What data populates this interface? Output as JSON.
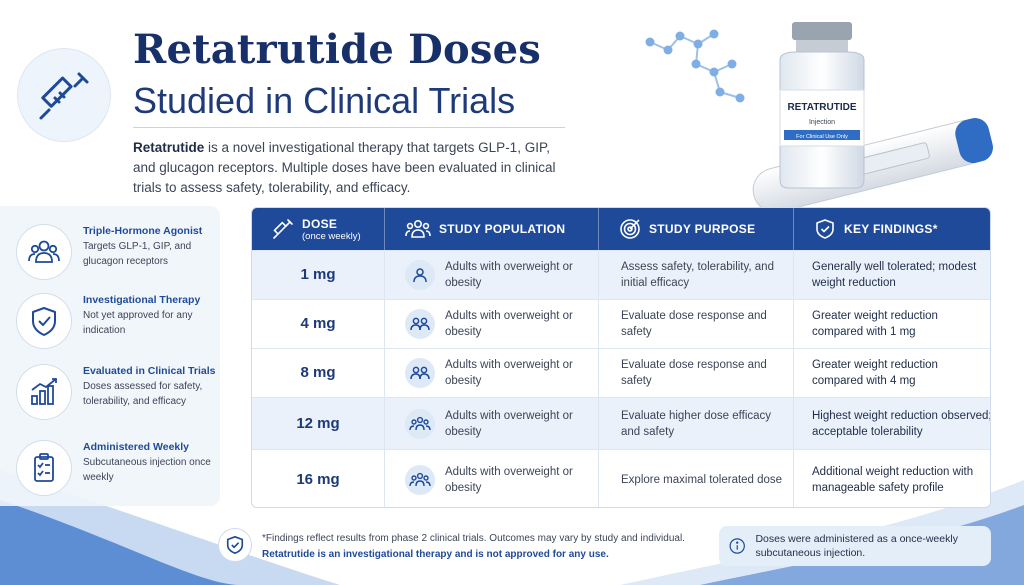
{
  "header": {
    "title_line1": "Retatrutide Doses",
    "title_line2": "Studied in Clinical Trials",
    "intro_bold": "Retatrutide",
    "intro_text": " is a novel investigational therapy that targets GLP-1, GIP, and glucagon receptors. Multiple doses have been evaluated in clinical trials to assess safety, tolerability, and efficacy.",
    "icon": "syringe-icon"
  },
  "product": {
    "vial_name": "RETATRUTIDE",
    "vial_sub": "Injection",
    "vial_band": "For Clinical Use Only"
  },
  "sidebar": {
    "items": [
      {
        "icon": "people-icon",
        "title": "Triple-Hormone Agonist",
        "desc": "Targets GLP-1, GIP, and glucagon receptors"
      },
      {
        "icon": "shield-check-icon",
        "title": "Investigational Therapy",
        "desc": "Not yet approved for any indication"
      },
      {
        "icon": "bar-chart-icon",
        "title": "Evaluated in Clinical Trials",
        "desc": "Doses assessed for safety, tolerability, and efficacy"
      },
      {
        "icon": "clipboard-icon",
        "title": "Administered Weekly",
        "desc": "Subcutaneous injection once weekly"
      }
    ]
  },
  "table": {
    "headers": {
      "dose": "DOSE",
      "dose_sub": "(once weekly)",
      "population": "STUDY POPULATION",
      "purpose": "STUDY PURPOSE",
      "findings": "KEY FINDINGS*"
    },
    "rows": [
      {
        "dose": "1 mg",
        "population": "Adults with overweight or obesity",
        "purpose": "Assess safety, tolerability, and initial efficacy",
        "findings": "Generally well tolerated; modest weight reduction"
      },
      {
        "dose": "4 mg",
        "population": "Adults with overweight or obesity",
        "purpose": "Evaluate dose response and safety",
        "findings": "Greater weight reduction compared with 1 mg"
      },
      {
        "dose": "8 mg",
        "population": "Adults with overweight or obesity",
        "purpose": "Evaluate dose response and safety",
        "findings": "Greater weight reduction compared with 4 mg"
      },
      {
        "dose": "12 mg",
        "population": "Adults with overweight or obesity",
        "purpose": "Evaluate higher dose efficacy and safety",
        "findings": "Highest weight reduction observed; acceptable tolerability"
      },
      {
        "dose": "16 mg",
        "population": "Adults with overweight or obesity",
        "purpose": "Explore maximal tolerated dose",
        "findings": "Additional weight reduction with manageable safety profile"
      }
    ]
  },
  "footer": {
    "note": "*Findings reflect results from phase 2 clinical trials. Outcomes may vary by study and individual.",
    "warning": "Retatrutide is an investigational therapy and is not approved for any use.",
    "info": "Doses were administered as a once-weekly subcutaneous injection."
  },
  "colors": {
    "primary": "#1f4a9a",
    "title": "#17306a",
    "row_shade": "#eaf1fa"
  }
}
